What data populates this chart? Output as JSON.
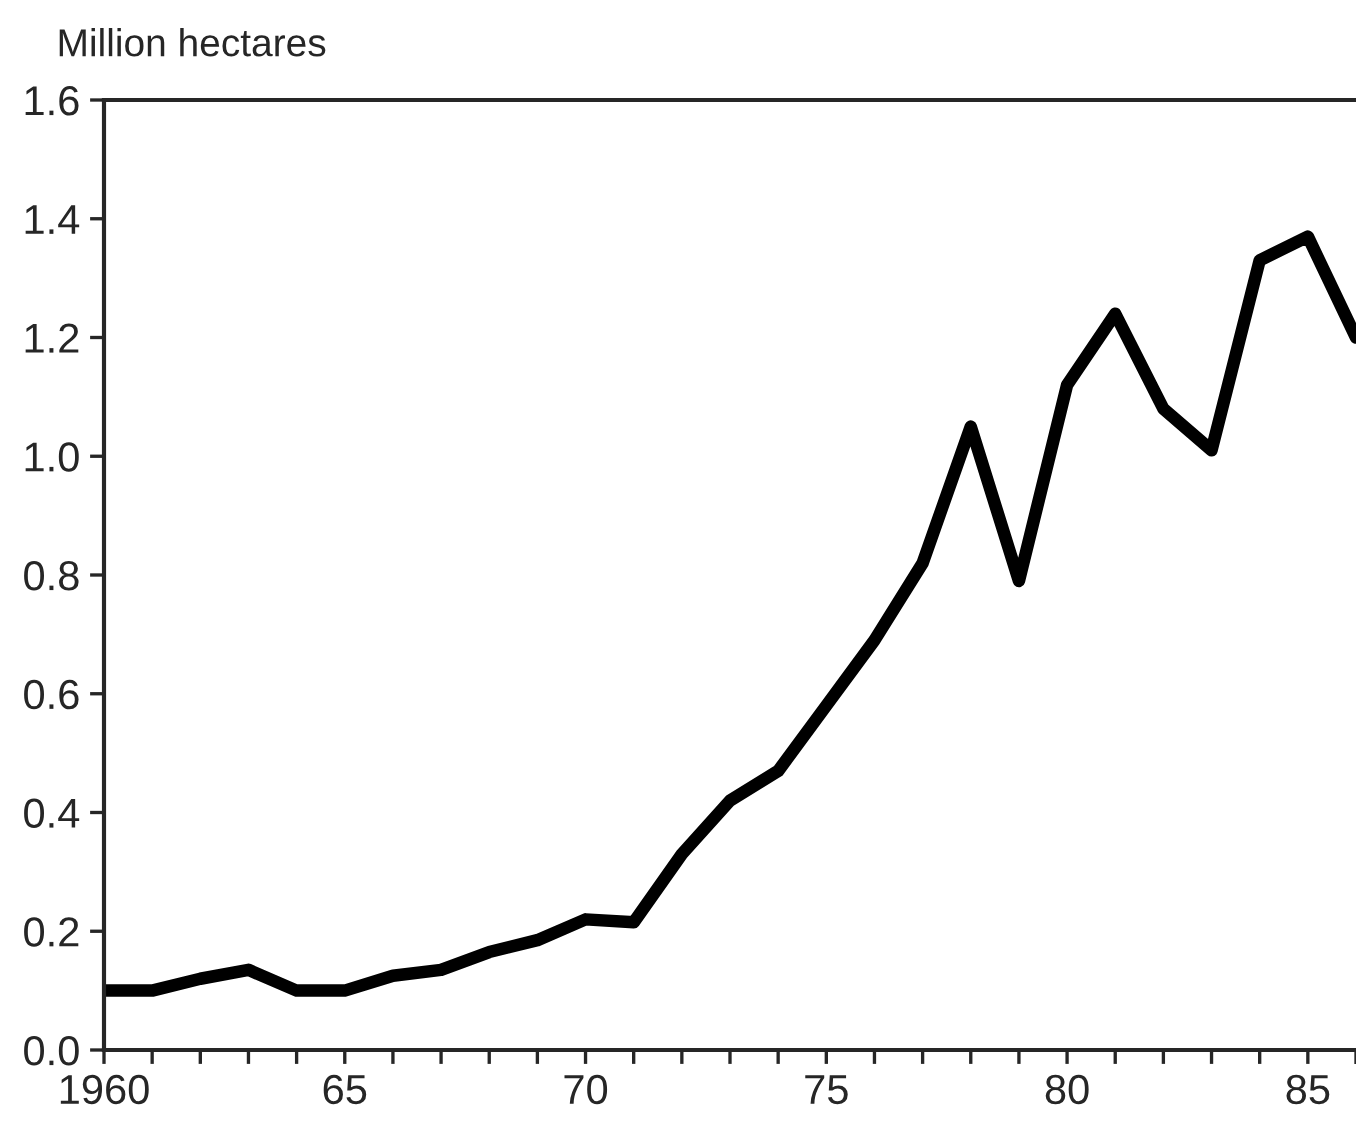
{
  "chart_data": {
    "type": "line",
    "ylabel": "Million hectares",
    "x": [
      1960,
      1961,
      1962,
      1963,
      1964,
      1965,
      1966,
      1967,
      1968,
      1969,
      1970,
      1971,
      1972,
      1973,
      1974,
      1975,
      1976,
      1977,
      1978,
      1979,
      1980,
      1981,
      1982,
      1983,
      1984,
      1985,
      1986
    ],
    "series": [
      {
        "color": "#000000",
        "values": [
          0.1,
          0.1,
          0.12,
          0.135,
          0.1,
          0.1,
          0.125,
          0.135,
          0.165,
          0.185,
          0.22,
          0.215,
          0.33,
          0.42,
          0.47,
          0.58,
          0.69,
          0.82,
          1.05,
          0.79,
          1.12,
          1.24,
          1.08,
          1.01,
          1.33,
          1.37,
          1.2
        ]
      }
    ],
    "xlim": [
      1960,
      1986
    ],
    "ylim": [
      0,
      1.6
    ],
    "xticks": [
      {
        "value": 1960,
        "label": "1960"
      },
      {
        "value": 1961,
        "label": null
      },
      {
        "value": 1962,
        "label": null
      },
      {
        "value": 1963,
        "label": null
      },
      {
        "value": 1964,
        "label": null
      },
      {
        "value": 1965,
        "label": "65"
      },
      {
        "value": 1966,
        "label": null
      },
      {
        "value": 1967,
        "label": null
      },
      {
        "value": 1968,
        "label": null
      },
      {
        "value": 1969,
        "label": null
      },
      {
        "value": 1970,
        "label": "70"
      },
      {
        "value": 1971,
        "label": null
      },
      {
        "value": 1972,
        "label": null
      },
      {
        "value": 1973,
        "label": null
      },
      {
        "value": 1974,
        "label": null
      },
      {
        "value": 1975,
        "label": "75"
      },
      {
        "value": 1976,
        "label": null
      },
      {
        "value": 1977,
        "label": null
      },
      {
        "value": 1978,
        "label": null
      },
      {
        "value": 1979,
        "label": null
      },
      {
        "value": 1980,
        "label": "80"
      },
      {
        "value": 1981,
        "label": null
      },
      {
        "value": 1982,
        "label": null
      },
      {
        "value": 1983,
        "label": null
      },
      {
        "value": 1984,
        "label": null
      },
      {
        "value": 1985,
        "label": "85"
      },
      {
        "value": 1986,
        "label": null
      }
    ],
    "yticks": [
      {
        "value": 0,
        "label": "0.0"
      },
      {
        "value": 0.2,
        "label": "0.2"
      },
      {
        "value": 0.4,
        "label": "0.4"
      },
      {
        "value": 0.6,
        "label": "0.6"
      },
      {
        "value": 0.8,
        "label": "0.8"
      },
      {
        "value": 1.0,
        "label": "1.0"
      },
      {
        "value": 1.2,
        "label": "1.2"
      },
      {
        "value": 1.4,
        "label": "1.4"
      },
      {
        "value": 1.6,
        "label": "1.6"
      }
    ],
    "grid": false,
    "legend": false,
    "marker": "none",
    "line_style": "solid"
  }
}
